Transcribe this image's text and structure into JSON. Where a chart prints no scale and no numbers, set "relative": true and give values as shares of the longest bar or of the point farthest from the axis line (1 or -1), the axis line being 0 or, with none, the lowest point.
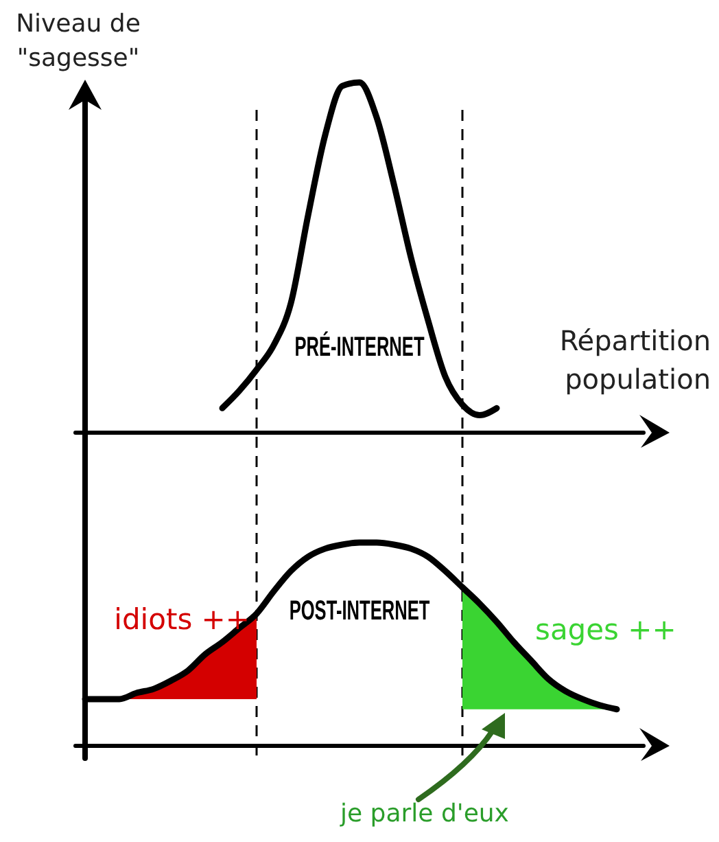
{
  "chart_data": [
    {
      "type": "line",
      "relative": true,
      "xlabel": "Répartition population",
      "ylabel": "Niveau de \"sagesse\"",
      "categories": [
        null,
        null,
        null,
        null,
        null,
        null,
        null,
        null,
        null,
        null,
        null,
        null,
        null,
        null,
        null,
        null,
        null,
        null,
        null,
        null,
        null,
        null,
        null,
        null,
        null,
        null,
        null,
        null,
        null,
        null,
        null,
        null,
        null
      ],
      "series": [
        {
          "name": "PRÉ-INTERNET",
          "color": "#000000",
          "values": [
            null,
            null,
            null,
            null,
            null,
            null,
            null,
            null,
            0.07,
            0.12,
            0.18,
            0.25,
            0.37,
            0.62,
            0.85,
            0.99,
            1,
            0.9,
            0.71,
            0.5,
            0.32,
            0.16,
            0.08,
            0.05,
            0.07,
            null,
            null,
            null,
            null,
            null,
            null,
            null,
            null
          ]
        }
      ]
    },
    {
      "type": "line",
      "relative": true,
      "categories": [
        null,
        null,
        null,
        null,
        null,
        null,
        null,
        null,
        null,
        null,
        null,
        null,
        null,
        null,
        null,
        null,
        null,
        null,
        null,
        null,
        null,
        null,
        null,
        null,
        null,
        null,
        null,
        null,
        null,
        null,
        null,
        null,
        null
      ],
      "series": [
        {
          "name": "POST-INTERNET",
          "color": "#000000",
          "values": [
            0.23,
            0.23,
            0.23,
            0.26,
            0.28,
            0.32,
            0.37,
            0.45,
            0.51,
            0.58,
            0.65,
            0.76,
            0.86,
            0.93,
            0.97,
            0.99,
            1,
            1,
            0.99,
            0.97,
            0.93,
            0.86,
            0.78,
            0.7,
            0.61,
            0.51,
            0.42,
            0.33,
            0.27,
            0.23,
            0.2,
            0.18,
            null
          ]
        },
        {
          "name": "idiots ++",
          "type": "area",
          "color": "#d40000",
          "values": [
            null,
            null,
            0.23,
            0.26,
            0.28,
            0.32,
            0.37,
            0.45,
            0.51,
            0.58,
            0.65,
            null,
            null,
            null,
            null,
            null,
            null,
            null,
            null,
            null,
            null,
            null,
            null,
            null,
            null,
            null,
            null,
            null,
            null,
            null,
            null,
            null,
            null
          ]
        },
        {
          "name": "sages ++",
          "type": "area",
          "color": "#3ad432",
          "values": [
            null,
            null,
            null,
            null,
            null,
            null,
            null,
            null,
            null,
            null,
            null,
            null,
            null,
            null,
            null,
            null,
            null,
            null,
            null,
            null,
            null,
            null,
            0.78,
            0.7,
            0.61,
            0.51,
            0.42,
            0.33,
            0.27,
            0.23,
            0.2,
            0.18,
            null
          ]
        }
      ],
      "annotations": [
        "je parle d'eux"
      ]
    }
  ]
}
